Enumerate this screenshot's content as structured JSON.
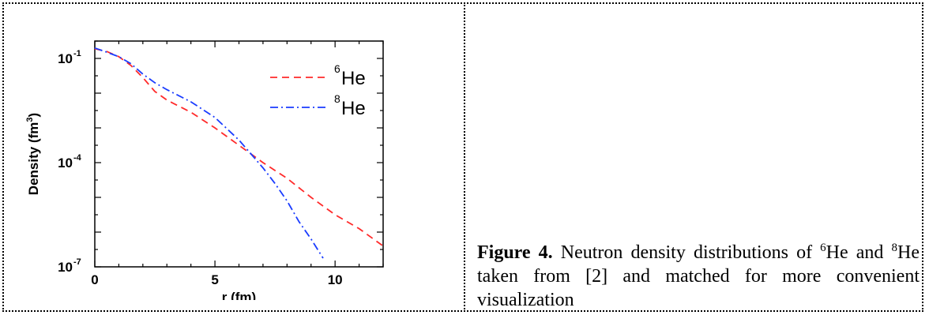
{
  "figure": {
    "caption_label": "Figure 4.",
    "caption_parts": [
      " Neutron density distributions of ",
      "6",
      "He and ",
      "8",
      "He taken from [2] and matched for more convenient visualization"
    ]
  },
  "chart_data": {
    "type": "line",
    "xlabel": "r (fm)",
    "ylabel": "Density (fm",
    "ylabel_sup": "3",
    "ylabel_close": ")",
    "xlim": [
      0,
      12
    ],
    "ylim_log10": [
      -7,
      -0.5
    ],
    "y_scale": "log",
    "x_ticks": [
      "0",
      "5",
      "10"
    ],
    "x_tick_values": [
      0,
      5,
      10
    ],
    "y_ticks": [
      {
        "base": "10",
        "exp": "-1",
        "value": -1
      },
      {
        "base": "10",
        "exp": "-4",
        "value": -4
      },
      {
        "base": "10",
        "exp": "-7",
        "value": -7
      }
    ],
    "legend_position": "top-right",
    "series": [
      {
        "name_sup": "6",
        "name_base": "He",
        "style": "dashed",
        "color": "#ff2a2a",
        "x": [
          0,
          0.5,
          1,
          1.5,
          2,
          2.5,
          3,
          4,
          5,
          6,
          6.5,
          7,
          8,
          9,
          10,
          11,
          12
        ],
        "log10y": [
          -0.72,
          -0.8,
          -0.95,
          -1.2,
          -1.55,
          -1.95,
          -2.2,
          -2.55,
          -3.0,
          -3.5,
          -3.75,
          -4.0,
          -4.45,
          -5.0,
          -5.5,
          -5.9,
          -6.4
        ]
      },
      {
        "name_sup": "8",
        "name_base": "He",
        "style": "dash-dot",
        "color": "#1a3cff",
        "x": [
          0,
          0.5,
          1,
          1.5,
          2,
          2.5,
          3,
          4,
          5,
          6,
          6.5,
          7,
          7.5,
          8,
          8.5,
          9,
          9.5
        ],
        "log10y": [
          -0.7,
          -0.82,
          -0.95,
          -1.15,
          -1.45,
          -1.7,
          -1.9,
          -2.25,
          -2.7,
          -3.35,
          -3.75,
          -4.15,
          -4.6,
          -5.1,
          -5.7,
          -6.2,
          -6.75
        ]
      }
    ]
  }
}
